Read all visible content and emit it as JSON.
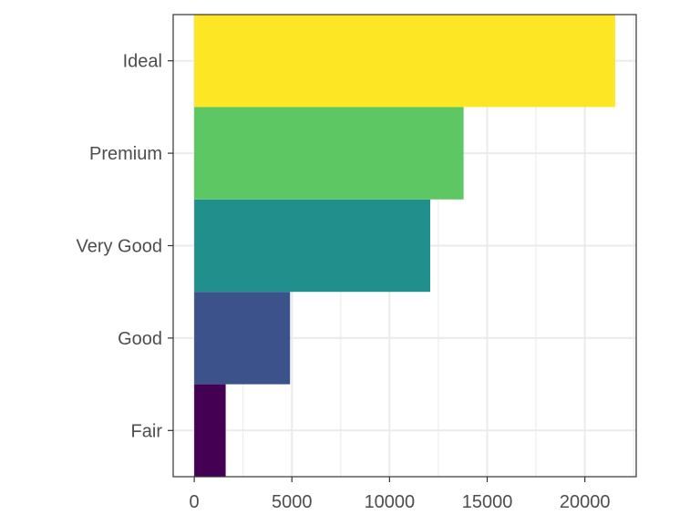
{
  "chart_data": {
    "type": "bar",
    "orientation": "horizontal",
    "title": "",
    "xlabel": "",
    "ylabel": "",
    "categories": [
      "Fair",
      "Good",
      "Very Good",
      "Premium",
      "Ideal"
    ],
    "values": [
      1610,
      4906,
      12082,
      13791,
      21551
    ],
    "colors": [
      "#440154",
      "#3B528B",
      "#21908C",
      "#5DC863",
      "#FDE725"
    ],
    "xlim": [
      -1077.55,
      22628.55
    ],
    "x_ticks": [
      0,
      5000,
      10000,
      15000,
      20000
    ],
    "x_tick_labels": [
      "0",
      "5000",
      "10000",
      "15000",
      "20000"
    ],
    "grid": true,
    "legend": "none"
  }
}
